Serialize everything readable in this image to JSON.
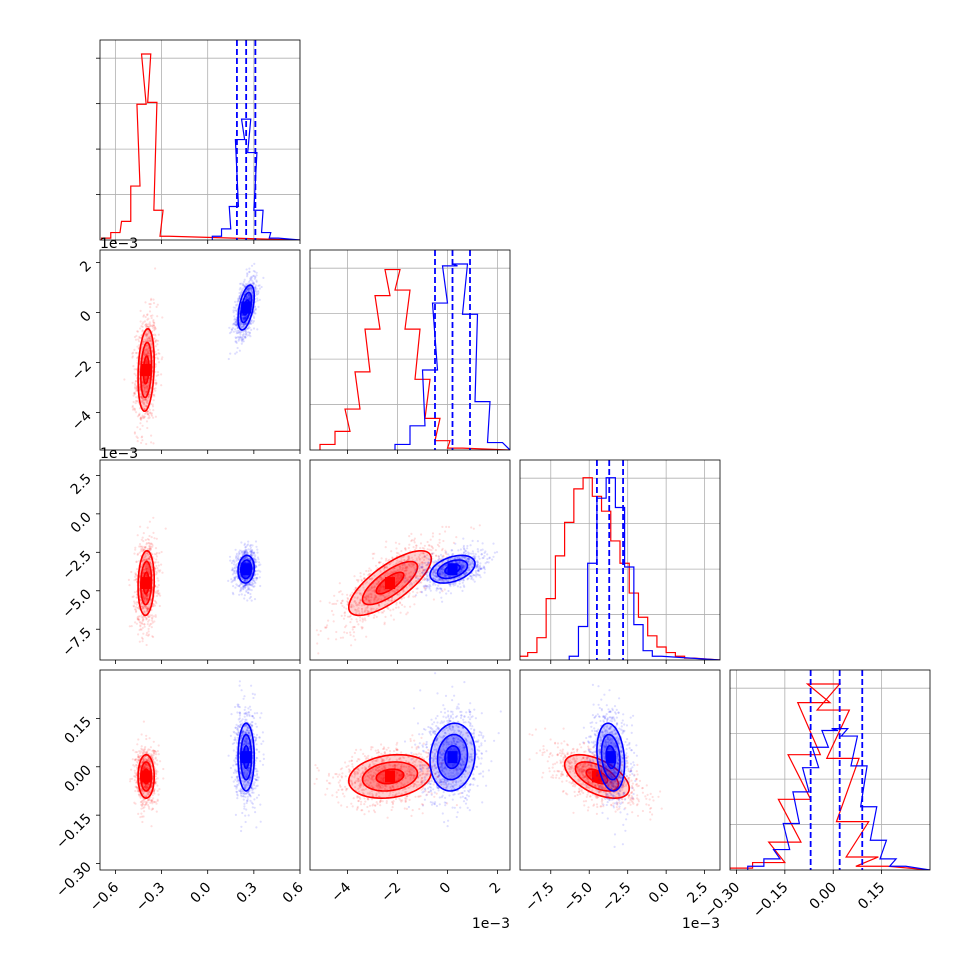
{
  "chart_data": {
    "type": "corner",
    "title": "",
    "colors": {
      "red": "#ff0000",
      "blue": "#0000ff"
    },
    "grid": true,
    "series": [
      {
        "name": "",
        "color": "red",
        "means": [
          -0.4,
          -0.0023,
          -0.0045,
          -0.03
        ],
        "sigmas": [
          0.035,
          0.0011,
          0.0014,
          0.045
        ]
      },
      {
        "name": "",
        "color": "blue",
        "means": [
          0.25,
          0.0002,
          -0.0036,
          0.03
        ],
        "sigmas": [
          0.035,
          0.0006,
          0.0006,
          0.07
        ]
      }
    ],
    "diagonal": [
      {
        "param": 0,
        "lim": [
          -0.7,
          0.6
        ],
        "quantile_lines_blue": [
          0.19,
          0.25,
          0.31
        ],
        "red_hist": [
          [
            -0.66,
            0.01
          ],
          [
            -0.6,
            0.04
          ],
          [
            -0.53,
            0.1
          ],
          [
            -0.47,
            0.29
          ],
          [
            -0.43,
            0.73
          ],
          [
            -0.4,
            1.0
          ],
          [
            -0.36,
            0.74
          ],
          [
            -0.32,
            0.16
          ],
          [
            -0.28,
            0.02
          ]
        ],
        "blue_hist": [
          [
            0.06,
            0.02
          ],
          [
            0.12,
            0.06
          ],
          [
            0.17,
            0.18
          ],
          [
            0.21,
            0.54
          ],
          [
            0.25,
            0.65
          ],
          [
            0.29,
            0.47
          ],
          [
            0.33,
            0.16
          ],
          [
            0.38,
            0.04
          ],
          [
            0.43,
            0.01
          ]
        ]
      },
      {
        "param": 1,
        "lim": [
          -0.0055,
          0.0025
        ],
        "quantile_lines_blue": [
          -0.0005,
          0.0002,
          0.0009
        ],
        "red_hist": [
          [
            -0.0048,
            0.03
          ],
          [
            -0.0042,
            0.1
          ],
          [
            -0.0038,
            0.22
          ],
          [
            -0.0034,
            0.42
          ],
          [
            -0.003,
            0.65
          ],
          [
            -0.0026,
            0.83
          ],
          [
            -0.0022,
            0.97
          ],
          [
            -0.0018,
            0.86
          ],
          [
            -0.0014,
            0.65
          ],
          [
            -0.001,
            0.38
          ],
          [
            -0.0006,
            0.17
          ],
          [
            -0.0002,
            0.05
          ],
          [
            0.0003,
            0.01
          ]
        ],
        "blue_hist": [
          [
            -0.0018,
            0.03
          ],
          [
            -0.0012,
            0.13
          ],
          [
            -0.0007,
            0.43
          ],
          [
            -0.0003,
            0.79
          ],
          [
            0.0001,
            0.99
          ],
          [
            0.0005,
            1.0
          ],
          [
            0.0009,
            0.73
          ],
          [
            0.0014,
            0.26
          ],
          [
            0.0019,
            0.04
          ]
        ]
      },
      {
        "param": 2,
        "lim": [
          -0.0095,
          0.0035
        ],
        "quantile_lines_blue": [
          -0.0045,
          -0.0037,
          -0.0028
        ],
        "red_hist": [
          [
            -0.0093,
            0.02
          ],
          [
            -0.0087,
            0.04
          ],
          [
            -0.0081,
            0.12
          ],
          [
            -0.0075,
            0.33
          ],
          [
            -0.0069,
            0.56
          ],
          [
            -0.0063,
            0.74
          ],
          [
            -0.0057,
            0.92
          ],
          [
            -0.0051,
            0.98
          ],
          [
            -0.0045,
            0.88
          ],
          [
            -0.0039,
            0.8
          ],
          [
            -0.0033,
            0.64
          ],
          [
            -0.0027,
            0.52
          ],
          [
            -0.0021,
            0.36
          ],
          [
            -0.0015,
            0.23
          ],
          [
            -0.0009,
            0.13
          ],
          [
            -0.0003,
            0.07
          ],
          [
            0.0003,
            0.04
          ],
          [
            0.0009,
            0.02
          ],
          [
            0.0015,
            0.01
          ]
        ],
        "blue_hist": [
          [
            -0.006,
            0.02
          ],
          [
            -0.0054,
            0.18
          ],
          [
            -0.0048,
            0.52
          ],
          [
            -0.0042,
            0.87
          ],
          [
            -0.0036,
            0.98
          ],
          [
            -0.003,
            0.82
          ],
          [
            -0.0024,
            0.5
          ],
          [
            -0.0018,
            0.19
          ],
          [
            -0.0012,
            0.05
          ],
          [
            -0.0006,
            0.02
          ]
        ]
      },
      {
        "param": 3,
        "lim": [
          -0.32,
          0.3
        ],
        "quantile_lines_blue": [
          -0.07,
          0.02,
          0.09
        ],
        "red_hist": [
          [
            -0.3,
            0.01
          ],
          [
            -0.2,
            0.04
          ],
          [
            -0.15,
            0.15
          ],
          [
            -0.12,
            0.38
          ],
          [
            -0.09,
            0.62
          ],
          [
            -0.06,
            0.9
          ],
          [
            -0.03,
            1.0
          ],
          [
            0.0,
            0.86
          ],
          [
            0.03,
            0.6
          ],
          [
            0.06,
            0.26
          ],
          [
            0.09,
            0.07
          ],
          [
            0.12,
            0.02
          ]
        ],
        "blue_hist": [
          [
            -0.24,
            0.02
          ],
          [
            -0.19,
            0.06
          ],
          [
            -0.16,
            0.11
          ],
          [
            -0.13,
            0.25
          ],
          [
            -0.1,
            0.42
          ],
          [
            -0.07,
            0.55
          ],
          [
            -0.04,
            0.66
          ],
          [
            -0.01,
            0.75
          ],
          [
            0.02,
            0.76
          ],
          [
            0.05,
            0.72
          ],
          [
            0.08,
            0.56
          ],
          [
            0.11,
            0.34
          ],
          [
            0.14,
            0.16
          ],
          [
            0.17,
            0.06
          ],
          [
            0.2,
            0.02
          ]
        ]
      }
    ],
    "axes": [
      {
        "lim": [
          -0.7,
          0.6
        ],
        "ticks": [
          -0.6,
          -0.3,
          0.0,
          0.3,
          0.6
        ],
        "tick_labels": [
          "−0.6",
          "−0.3",
          "0.0",
          "0.3",
          "0.6"
        ],
        "offset": ""
      },
      {
        "lim": [
          -0.0055,
          0.0025
        ],
        "ticks": [
          -0.004,
          -0.002,
          0.0,
          0.002
        ],
        "tick_labels": [
          "−4",
          "−2",
          "0",
          "2"
        ],
        "offset": "1e−3"
      },
      {
        "lim": [
          -0.0095,
          0.0035
        ],
        "ticks": [
          -0.0075,
          -0.005,
          -0.0025,
          0.0,
          0.0025
        ],
        "tick_labels": [
          "−7.5",
          "−5.0",
          "−2.5",
          "0.0",
          "2.5"
        ],
        "offset": "1e−3"
      },
      {
        "lim": [
          -0.32,
          0.3
        ],
        "ticks": [
          -0.3,
          -0.15,
          0.0,
          0.15
        ],
        "tick_labels": [
          "−0.30",
          "−0.15",
          "0.00",
          "0.15"
        ],
        "offset": ""
      }
    ],
    "correlations_red": {
      "0-1": 0.2,
      "0-2": 0.1,
      "1-2": 0.75,
      "0-3": 0.0,
      "1-3": 0.2,
      "2-3": -0.55
    },
    "correlations_blue": {
      "0-1": 0.5,
      "0-2": 0.1,
      "1-2": 0.4,
      "0-3": 0.0,
      "1-3": 0.1,
      "2-3": -0.2
    },
    "contour_levels_sigma": [
      0.5,
      1.0,
      1.5
    ]
  }
}
